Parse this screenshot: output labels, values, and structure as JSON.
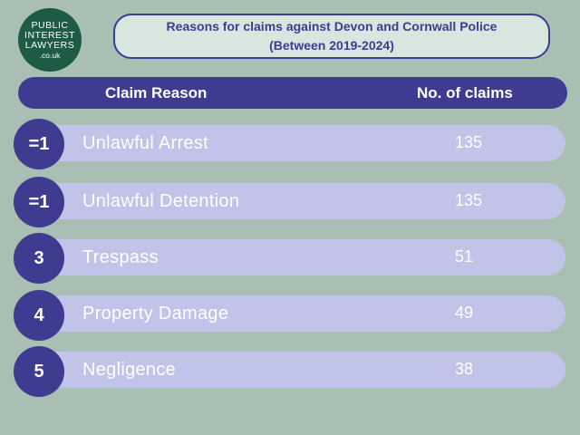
{
  "logo": {
    "line1": "PUBLIC",
    "line2": "INTEREST",
    "line3": "LAWYERS",
    "line4": ".co.uk"
  },
  "title": {
    "line1": "Reasons for claims against Devon and Cornwall Police",
    "line2": "(Between 2019-2024)"
  },
  "header": {
    "reason": "Claim Reason",
    "count": "No. of claims"
  },
  "chart_data": {
    "type": "table",
    "title": "Reasons for claims against Devon and Cornwall Police (Between 2019-2024)",
    "columns": [
      "Claim Reason",
      "No. of claims"
    ],
    "rows": [
      {
        "rank": "=1",
        "reason": "Unlawful Arrest",
        "count": "135"
      },
      {
        "rank": "=1",
        "reason": "Unlawful Detention",
        "count": "135"
      },
      {
        "rank": "3",
        "reason": "Trespass",
        "count": "51"
      },
      {
        "rank": "4",
        "reason": "Property Damage",
        "count": "49"
      },
      {
        "rank": "5",
        "reason": "Negligence",
        "count": "38"
      }
    ]
  },
  "colors": {
    "background": "#a9bfb3",
    "accent": "#3d3c90",
    "row": "#c1c3e8",
    "title_box": "#d7e7df",
    "logo": "#1e5b45"
  }
}
